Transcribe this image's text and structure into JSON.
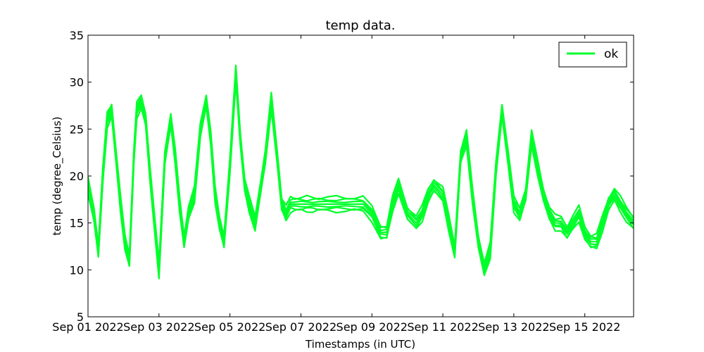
{
  "chart_data": {
    "type": "line",
    "title": "temp data.",
    "xlabel": "Timestamps (in UTC)",
    "ylabel": "temp (degree_Celsius)",
    "x_range": [
      "2022-09-01",
      "2022-09-16T09:00"
    ],
    "ylim": [
      5,
      35
    ],
    "x_ticks": [
      "Sep 01 2022",
      "Sep 03 2022",
      "Sep 05 2022",
      "Sep 07 2022",
      "Sep 09 2022",
      "Sep 11 2022",
      "Sep 13 2022",
      "Sep 15 2022"
    ],
    "x_tick_dates": [
      "2022-09-01",
      "2022-09-03",
      "2022-09-05",
      "2022-09-07",
      "2022-09-09",
      "2022-09-11",
      "2022-09-13",
      "2022-09-15"
    ],
    "y_ticks": [
      "5",
      "10",
      "15",
      "20",
      "25",
      "30",
      "35"
    ],
    "y_tick_values": [
      5,
      10,
      15,
      20,
      25,
      30,
      35
    ],
    "grid": false,
    "legend": {
      "placement": "top-right",
      "entries": [
        {
          "label": "ok",
          "color": "#00ff2a"
        }
      ]
    },
    "series_color": "#00ff2a",
    "series": [
      {
        "name": "ok",
        "x": [
          "2022-09-01T00:00",
          "2022-09-01T04:00",
          "2022-09-01T07:00",
          "2022-09-01T10:00",
          "2022-09-01T13:00",
          "2022-09-01T16:00",
          "2022-09-01T19:00",
          "2022-09-01T22:00",
          "2022-09-02T01:00",
          "2022-09-02T04:00",
          "2022-09-02T07:00",
          "2022-09-02T09:00",
          "2022-09-02T12:00",
          "2022-09-02T15:00",
          "2022-09-02T18:00",
          "2022-09-03T00:00",
          "2022-09-03T04:00",
          "2022-09-03T08:00",
          "2022-09-03T11:00",
          "2022-09-03T14:00",
          "2022-09-03T17:00",
          "2022-09-03T20:00",
          "2022-09-04T00:00",
          "2022-09-04T04:00",
          "2022-09-04T08:00",
          "2022-09-04T11:00",
          "2022-09-04T14:00",
          "2022-09-04T17:00",
          "2022-09-04T20:00",
          "2022-09-05T00:00",
          "2022-09-05T04:00",
          "2022-09-05T07:00",
          "2022-09-05T10:00",
          "2022-09-05T13:00",
          "2022-09-05T17:00",
          "2022-09-05T20:00",
          "2022-09-06T00:00",
          "2022-09-06T04:00",
          "2022-09-06T08:00",
          "2022-09-06T11:00",
          "2022-09-06T14:00",
          "2022-09-06T17:00",
          "2022-09-06T20:00",
          "2022-09-07T00:00",
          "2022-09-07T04:00",
          "2022-09-07T08:00",
          "2022-09-07T12:00",
          "2022-09-07T18:00",
          "2022-09-08T00:00",
          "2022-09-08T06:00",
          "2022-09-08T12:00",
          "2022-09-08T18:00",
          "2022-09-09T00:00",
          "2022-09-09T06:00",
          "2022-09-09T10:00",
          "2022-09-09T14:00",
          "2022-09-09T18:00",
          "2022-09-10T00:00",
          "2022-09-10T06:00",
          "2022-09-10T10:00",
          "2022-09-10T14:00",
          "2022-09-10T18:00",
          "2022-09-11T00:00",
          "2022-09-11T04:00",
          "2022-09-11T08:00",
          "2022-09-11T12:00",
          "2022-09-11T16:00",
          "2022-09-11T20:00",
          "2022-09-12T00:00",
          "2022-09-12T04:00",
          "2022-09-12T08:00",
          "2022-09-12T12:00",
          "2022-09-12T16:00",
          "2022-09-12T20:00",
          "2022-09-13T00:00",
          "2022-09-13T04:00",
          "2022-09-13T08:00",
          "2022-09-13T12:00",
          "2022-09-13T16:00",
          "2022-09-13T20:00",
          "2022-09-14T00:00",
          "2022-09-14T04:00",
          "2022-09-14T08:00",
          "2022-09-14T12:00",
          "2022-09-14T16:00",
          "2022-09-14T20:00",
          "2022-09-15T00:00",
          "2022-09-15T04:00",
          "2022-09-15T08:00",
          "2022-09-15T12:00",
          "2022-09-15T16:00",
          "2022-09-15T20:00",
          "2022-09-16T00:00",
          "2022-09-16T04:00",
          "2022-09-16T09:00"
        ],
        "values": [
          19,
          16,
          12,
          20,
          26,
          27,
          22,
          17,
          13,
          11,
          22,
          27,
          28,
          26,
          20,
          10,
          22,
          26,
          22,
          17,
          13,
          16,
          18,
          25,
          28,
          24,
          18,
          15,
          13,
          21,
          31,
          24,
          19,
          17,
          15,
          18,
          22,
          28,
          22,
          17,
          16,
          17,
          17,
          17,
          17,
          17,
          17,
          17,
          17,
          17,
          17,
          17,
          16,
          14,
          14,
          17,
          19,
          16,
          15,
          16,
          18,
          19,
          18,
          15,
          12,
          22,
          24,
          18,
          13,
          10,
          12,
          21,
          27,
          22,
          17,
          16,
          18,
          24,
          21,
          18,
          16,
          15,
          15,
          14,
          15,
          16,
          14,
          13,
          13,
          15,
          17,
          18,
          17,
          16,
          15
        ]
      }
    ]
  }
}
